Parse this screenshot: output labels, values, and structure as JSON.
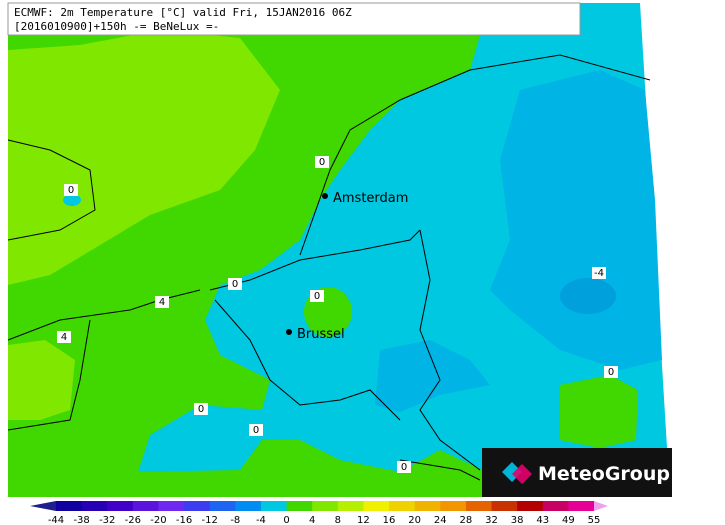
{
  "header": {
    "line1": "ECMWF: 2m Temperature [°C] valid Fri, 15JAN2016 06Z",
    "line2": "[2016010900]+150h  -= BeNeLux =-"
  },
  "cities": [
    "Amsterdam",
    "Brussel"
  ],
  "contour_labels": [
    "0",
    "0",
    "0",
    "4",
    "0",
    "4",
    "-4",
    "0",
    "0",
    "0",
    "0"
  ],
  "colorbar": {
    "ticks": [
      -44,
      -38,
      -32,
      -26,
      -20,
      -16,
      -12,
      -8,
      -4,
      0,
      4,
      8,
      12,
      16,
      20,
      24,
      28,
      32,
      38,
      43,
      49,
      55
    ],
    "colors": [
      "#1e1e8c",
      "#1000a0",
      "#2800b4",
      "#4000c8",
      "#5a14dc",
      "#6e28f0",
      "#3c3cf0",
      "#1e64f0",
      "#008cf0",
      "#00c8e0",
      "#40d800",
      "#80e800",
      "#b4f000",
      "#f0f000",
      "#f0d200",
      "#f0b400",
      "#f09600",
      "#e66400",
      "#c83200",
      "#b40000",
      "#c80064",
      "#e60096",
      "#f0a0f0"
    ]
  },
  "logo": {
    "text": "MeteoGroup"
  }
}
